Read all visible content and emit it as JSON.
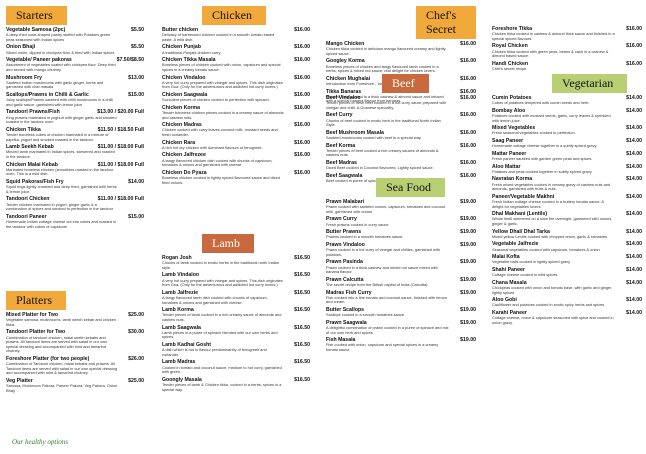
{
  "starters": {
    "title": "Starters",
    "items": [
      {
        "name": "Vegetable Samosa (2pc)",
        "desc": "A deep fried cone-shaped pastry stuffed with Potatoes,green peas seasoned with Indian spices",
        "price": "$5.50"
      },
      {
        "name": "Onion Bhaji",
        "desc": "Sliced onion, dipped in chickpea flour & fried with Indian spices",
        "price": "$5.50"
      },
      {
        "name": "Vegetable/ Paneer pakoras",
        "desc": "Assortment of vegetables coated with chickpea flour. Deep fried and served with mango chutney",
        "price": "$7.50/$8.50"
      },
      {
        "name": "Mushroom Fry",
        "desc": "Sautéed button mushrooms with garlic ginger, herbs and garnished with chat masala",
        "price": "$13.00"
      },
      {
        "name": "Scallops/Prawns in Chilli & Garlic",
        "desc": "Juicy scallops/Prawns sautéed with chilli mushrooms in a chilli and garlic sauce, garnished with lemon juice",
        "price": "$15.00"
      },
      {
        "name": "Tandoori Prawns/Fish",
        "desc": "King prawns marinated in yoghurt with ginger garlic and smoked roasted in the tandoor oven",
        "price": "$13.00 / $20.00 Full"
      },
      {
        "name": "Chicken Tikka",
        "desc": "Tender boneless cubes of chicken marinated in a mixture of paprika, yogurt and smoked roasted in the tandoor.",
        "price": "$11.50 / $18.50 Full"
      },
      {
        "name": "Lamb Seekh Kebab",
        "desc": "Minced lamb marinated in Indian spices, skewered and roasted in the tandoor.",
        "price": "$11.00 / $18.00 Full"
      },
      {
        "name": "Chicken Malai Kebab",
        "desc": "Marinated boneless chicken (smoothies roasted in the tandoor oven. This is a mild dish.",
        "price": "$11.00 / $18.00 Full"
      },
      {
        "name": "Squid Pakoras/Fish Fry",
        "desc": "Squid rings lightly crumbed and deep fried, garnished with herbs & lemon juice.",
        "price": "$14.00"
      },
      {
        "name": "Tandoori Chicken",
        "desc": "Tender chicken marinated in yogurt, ginger garlic & a combination of spices and smoked to perfection in the tandoor",
        "price": "$11.00 / $18.00 Full"
      },
      {
        "name": "Tandoori Paneer",
        "desc": "Homemade Indian cottage cheese cut into cubes and roasted in the tandoor with cubes of capsicum",
        "price": "$15.00"
      }
    ]
  },
  "platters": {
    "title": "Platters",
    "items": [
      {
        "name": "Mixed Platter for Two",
        "desc": "Vegetable samosa, mushrooms, lamb seekh kebab and chicken tikka.",
        "price": "$25.00"
      },
      {
        "name": "Tandoori Platter for Two",
        "desc": "Combination of tandoori chicken, malai seekh kebabs and prawns. All tandoori items are served with salad in our own special dressing and accompanied with mint and tamarind chutney.",
        "price": "$30.00"
      },
      {
        "name": "Foreshore Platter (for two people)",
        "desc": "Combination of Tandoori chicken, malai kebabs and prawns. All Tandoori items are served with salad in our own special dressing and accompanied with mint & tamarind chutney.",
        "price": "$26.00"
      },
      {
        "name": "Veg Platter",
        "desc": "Samosa, Mushroom Pakora, Paneer Pakora, Veg Pakora, Onion Bhaji",
        "price": "$25.00"
      }
    ]
  },
  "chicken": {
    "title": "Chicken",
    "items": [
      {
        "name": "Butter chicken",
        "desc": "Delicacy of barbecued chicken cooked in a smooth tomato based paste. A mild dish.",
        "price": "$16.00"
      },
      {
        "name": "Chicken Punjab",
        "desc": "A traditional Punjabi chicken curry.",
        "price": "$16.00"
      },
      {
        "name": "Chicken Tikka Masala",
        "desc": "Boneless pieces of chicken cooked with onion, capsicum and special spices in a creamy tomato sauce.",
        "price": "$16.00"
      },
      {
        "name": "Chicken Vindaloo",
        "desc": "A very hot curry prepared with vinegar and spices. This dish originates from Goa. (Only for the adventurous and addicted hot curry lovers.)",
        "price": "$16.00"
      },
      {
        "name": "Chicken Saagwala",
        "desc": "Succulent pieces of chicken cooked to perfection with spinach.",
        "price": "$16.00"
      },
      {
        "name": "Chicken Korma",
        "desc": "Tender boneless chicken pieces cooked in a creamy sauce of almonds and cashew nuts.",
        "price": "$16.00"
      },
      {
        "name": "Chicken Madras",
        "desc": "Chicken cooked with curry leaves,coconut milk, mustard seeds and fresh coriander.",
        "price": "$16.00"
      },
      {
        "name": "Chicken Rara",
        "desc": "A rich hot dry chicken with dominant flavours of fenugreek.",
        "price": "$16.00"
      },
      {
        "name": "Chicken Jalfrezee",
        "desc": "A tangy flavoured chicken dish cooked with chunks of capsicum, tomatoes & onions and garnished with cheese",
        "price": "$16.00"
      },
      {
        "name": "Chicken Do Pyaza",
        "desc": "Boneless chicken cooked in lightly spiced flavoured sauce and diced fried onions.",
        "price": "$16.00"
      }
    ]
  },
  "lamb": {
    "title": "Lamb",
    "items": [
      {
        "name": "Rogan Josh",
        "desc": "Chunks of lamb cooked in exotic herbs in the traditional north Indian style.",
        "price": "$16.50"
      },
      {
        "name": "Lamb Vindaloo",
        "desc": "A very hot curry prepared with vinegar and spices. This dish originates from Goa. (Only for the adventurous and addicted hot curry lovers.)",
        "price": "$16.50"
      },
      {
        "name": "Lamb Jalfrezie",
        "desc": "A tangy flavoured lamb dish cooked with chunks of capsicum, tomatoes & onions and garnished with cheese.",
        "price": "$16.50"
      },
      {
        "name": "Lamb Korma",
        "desc": "Tender pieces of lamb cooked in a rich creamy sauce of almonds and cashew nuts.",
        "price": "$16.50"
      },
      {
        "name": "Lamb Saagwala",
        "desc": "Lamb pieces in a puree of spinach blended with our own herbs and spices.",
        "price": "$16.50"
      },
      {
        "name": "Lamb Kadhai Gosht",
        "desc": "A dish which is hot in flavour predominantly of fenugreek and coriander.",
        "price": "$16.50"
      },
      {
        "name": "Lamb Madras",
        "desc": "Cooked in tomato and coconut sauce, medium to hot curry, garnished with green.",
        "price": "$16.50"
      },
      {
        "name": "Goongly Masala",
        "desc": "Tender pieces of lamb & Chicken tikka, cooked in a herbs, spices in a special way.",
        "price": "$16.50"
      }
    ]
  },
  "chefs_secret": {
    "title": "Chef's Secret",
    "items_left": [
      {
        "name": "Mango Chicken",
        "desc": "Chicken tikka cooked in delicious mango flavoured creamy and lightly spiced sauce.",
        "price": "$16.00"
      },
      {
        "name": "Googley Korma",
        "desc": "Boneless pieces of chicken and tangy flavoured lamb cooked in a herbs, spices & mixed nut sauce, real delight for chicken lovers.",
        "price": "$16.00"
      },
      {
        "name": "Chicken Mughalai",
        "desc": "Introduction from Foreshore , 1st time in Auckland.",
        "price": "$16.00"
      },
      {
        "name": "Tikka Banaras",
        "desc": "Chicken tikka cooked in a thick cashew & almond sauce and infused with a special banana flavour from banaras.",
        "price": "$16.00"
      }
    ],
    "items_right": [
      {
        "name": "Foreshore Tikka",
        "desc": "Chicken tikka cooked in cashew & almond thick sauce and finished in a special spiced flavours.",
        "price": "$16.00"
      },
      {
        "name": "Royal Chicken",
        "desc": "Chicken tikka cooked with green peas, beans & cash in a cashew & almond based sauce.",
        "price": "$16.00"
      },
      {
        "name": "Handi Chicken",
        "desc": "Chef's secret recipe",
        "price": "$16.00"
      }
    ]
  },
  "beef": {
    "title": "Beef",
    "items": [
      {
        "name": "Beef Vindaloo",
        "desc": "Tender pieces of fresh beef cooked in a hot curry sauce prepared with vinegar and chilli. A Goanese speciality.",
        "price": "$16.00"
      },
      {
        "name": "Beef Curry",
        "desc": "Chunks of beef cooked in exotic herb in the traditional North Indian Style.",
        "price": "$16.00"
      },
      {
        "name": "Beef Mushroom Masala",
        "desc": "Sautéed mushrooms cooked with beef in a special way.",
        "price": "$16.00"
      },
      {
        "name": "Beef Korma",
        "desc": "Tender pieces of beef cooked a rich creamy sauces of almonds & cashew nuts.",
        "price": "$16.00"
      },
      {
        "name": "Beef Madras",
        "desc": "Diced Beef cooked in Coconut flavoured, Lightly spiced sauce.",
        "price": "$16.00"
      },
      {
        "name": "Beef Saagwala",
        "desc": "Beef cooked in puree of spinach and mildly spiced sauce.",
        "price": "$16.00"
      }
    ]
  },
  "seafood": {
    "title": "Sea Food",
    "items": [
      {
        "name": "Prawn Malabari",
        "desc": "Prawn cooked with sautéed onions, capsicum, tomatoes and coconut milk, garnished with cream",
        "price": "$19.00"
      },
      {
        "name": "Prawn Curry",
        "desc": "Fresh prawns cooked in curry sauce",
        "price": "$19.00"
      },
      {
        "name": "Butter Prawns",
        "desc": "Prawns cooked in a smooth tomatoes sauce.",
        "price": "$19.00"
      },
      {
        "name": "Prawn Vindaloo",
        "desc": "Prawn cooked in a hot curry of vinegar and chillies, garnished with potatoes.",
        "price": "$19.00"
      },
      {
        "name": "Prawn Pasinda",
        "desc": "Prawn cooked in a thick cashew and mixed nut sauce mixed with banana flavour",
        "price": "$19.00"
      },
      {
        "name": "Prawn Calcutta",
        "desc": "The secret recipe from the British capital of India (Calcutta)",
        "price": "$19.00"
      },
      {
        "name": "Madras Fish Curry",
        "desc": "Fish cooked into a fine tomato and coconut sauce, finished with lemon and cream.",
        "price": "$19.00"
      },
      {
        "name": "Butter Scallops",
        "desc": "Scallops cooked in a smooth tomatoes sauce.",
        "price": "$19.00"
      },
      {
        "name": "Prawn Saagwala",
        "desc": "A delightful combination of prawn cooked in a puree of spinach and mix of our own herb and spices",
        "price": "$19.00"
      },
      {
        "name": "Fish Masala",
        "desc": "Fish cooked with onion, capsicum and special spices in a creamy tomato sauce",
        "price": "$19.00"
      }
    ]
  },
  "vegetarian": {
    "title": "Vegetarian",
    "items": [
      {
        "name": "Cumin Potatoes",
        "desc": "Cubes of potatoes tempered with cumin seeds and herb.",
        "price": "$14.00"
      },
      {
        "name": "Bombay Aloo",
        "desc": "Potatoes cooked with mustard seeds, garlic, curry leaves & sprinkled with lemon juice.",
        "price": "$14.00"
      },
      {
        "name": "Mixed Vegetables",
        "desc": "Fresh seasonal vegetables cooked to perfection.",
        "price": "$14.00"
      },
      {
        "name": "Saag Paneer",
        "desc": "Homemade cottage cheese together in a subtly spiced gravy.",
        "price": "$14.00"
      },
      {
        "name": "Mattar Paneer",
        "desc": "Fresh paneer sautéed with garden green peas and spices",
        "price": "$14.00"
      },
      {
        "name": "Aloo Mattar",
        "desc": "Potatoes and peas cooked together in subtly spiced gravy",
        "price": "$14.00"
      },
      {
        "name": "Navratan Korma",
        "desc": "Fresh mixed vegetables cooked in creamy gravy of cashew nuts and almonds, garnished with fruits & nuts.",
        "price": "$14.00"
      },
      {
        "name": "Paneer/Vegetable Makhni",
        "desc": "Fresh Indian cottage cheese cooked in a buttery tomato sauce. A delight for vegetables lovers.",
        "price": "$14.00"
      },
      {
        "name": "Dhal Makhani (Lentils)",
        "desc": "Whole lentil simmered on a slow fire overnight, garnished with onions, ginger & garlic.",
        "price": "$14.00"
      },
      {
        "name": "Yellow Dhal/ Dhal Tarka",
        "desc": "Mixed yellow Lentils cooked with chopped onion, garlic & tomatoes",
        "price": "$14.00"
      },
      {
        "name": "Vegetable Jalfrezie",
        "desc": "Seasonal vegetables cooked with capsicum, tomatoes & onion",
        "price": "$14.00"
      },
      {
        "name": "Malai Kofta",
        "desc": "Vegetable balls cooked in lightly spiced gravy",
        "price": "$14.00"
      },
      {
        "name": "Shahi Paneer",
        "desc": "Cottage cheese cooked in mild spices",
        "price": "$14.00"
      },
      {
        "name": "Chana Masala",
        "desc": "Chickpeas cooked with onion and tomato base, with garlic and ginger, lightly spiced",
        "price": "$14.00"
      },
      {
        "name": "Aloo Gobi",
        "desc": "Cauliflower and potatoes cooked in exotic spicy herbs and spices",
        "price": "$14.00"
      },
      {
        "name": "Karahi Paneer",
        "desc": "Cottage cheese, onion & capsicum seasoned with spice and cooked in onion gravy.",
        "price": "$14.00"
      }
    ]
  },
  "footer": {
    "text": "Our healthy options"
  },
  "colors": {
    "orange": "#f2a93b",
    "green": "#b8cf73",
    "rust": "#c96a3e"
  }
}
